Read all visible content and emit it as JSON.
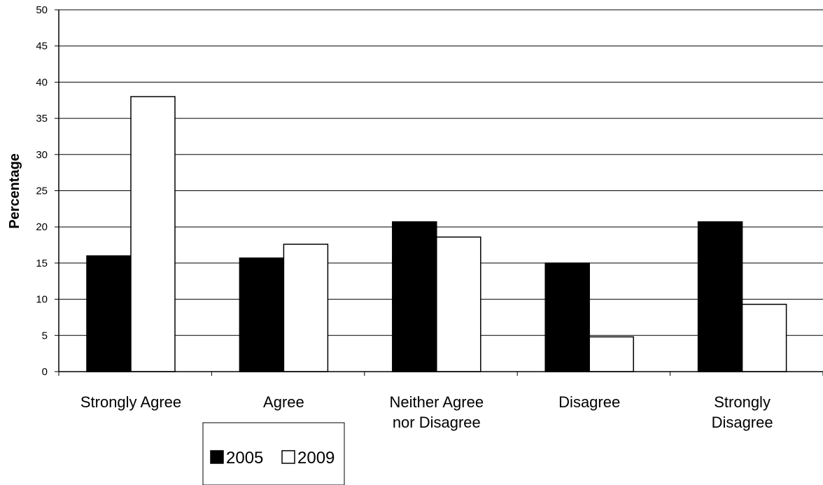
{
  "chart_data": {
    "type": "bar",
    "title": "",
    "xlabel": "",
    "ylabel": "Percentage",
    "ylim": [
      0,
      50
    ],
    "ytick_step": 5,
    "grid": true,
    "legend_position": "bottom-left",
    "categories": [
      [
        "Strongly Agree"
      ],
      [
        "Agree"
      ],
      [
        "Neither Agree",
        "nor Disagree"
      ],
      [
        "Disagree"
      ],
      [
        "Strongly",
        "Disagree"
      ]
    ],
    "series": [
      {
        "name": "2005",
        "color": "#000000",
        "values": [
          16,
          15.7,
          20.7,
          15,
          20.7
        ]
      },
      {
        "name": "2009",
        "color": "#ffffff",
        "values": [
          38,
          17.6,
          18.6,
          4.8,
          9.3
        ]
      }
    ]
  }
}
